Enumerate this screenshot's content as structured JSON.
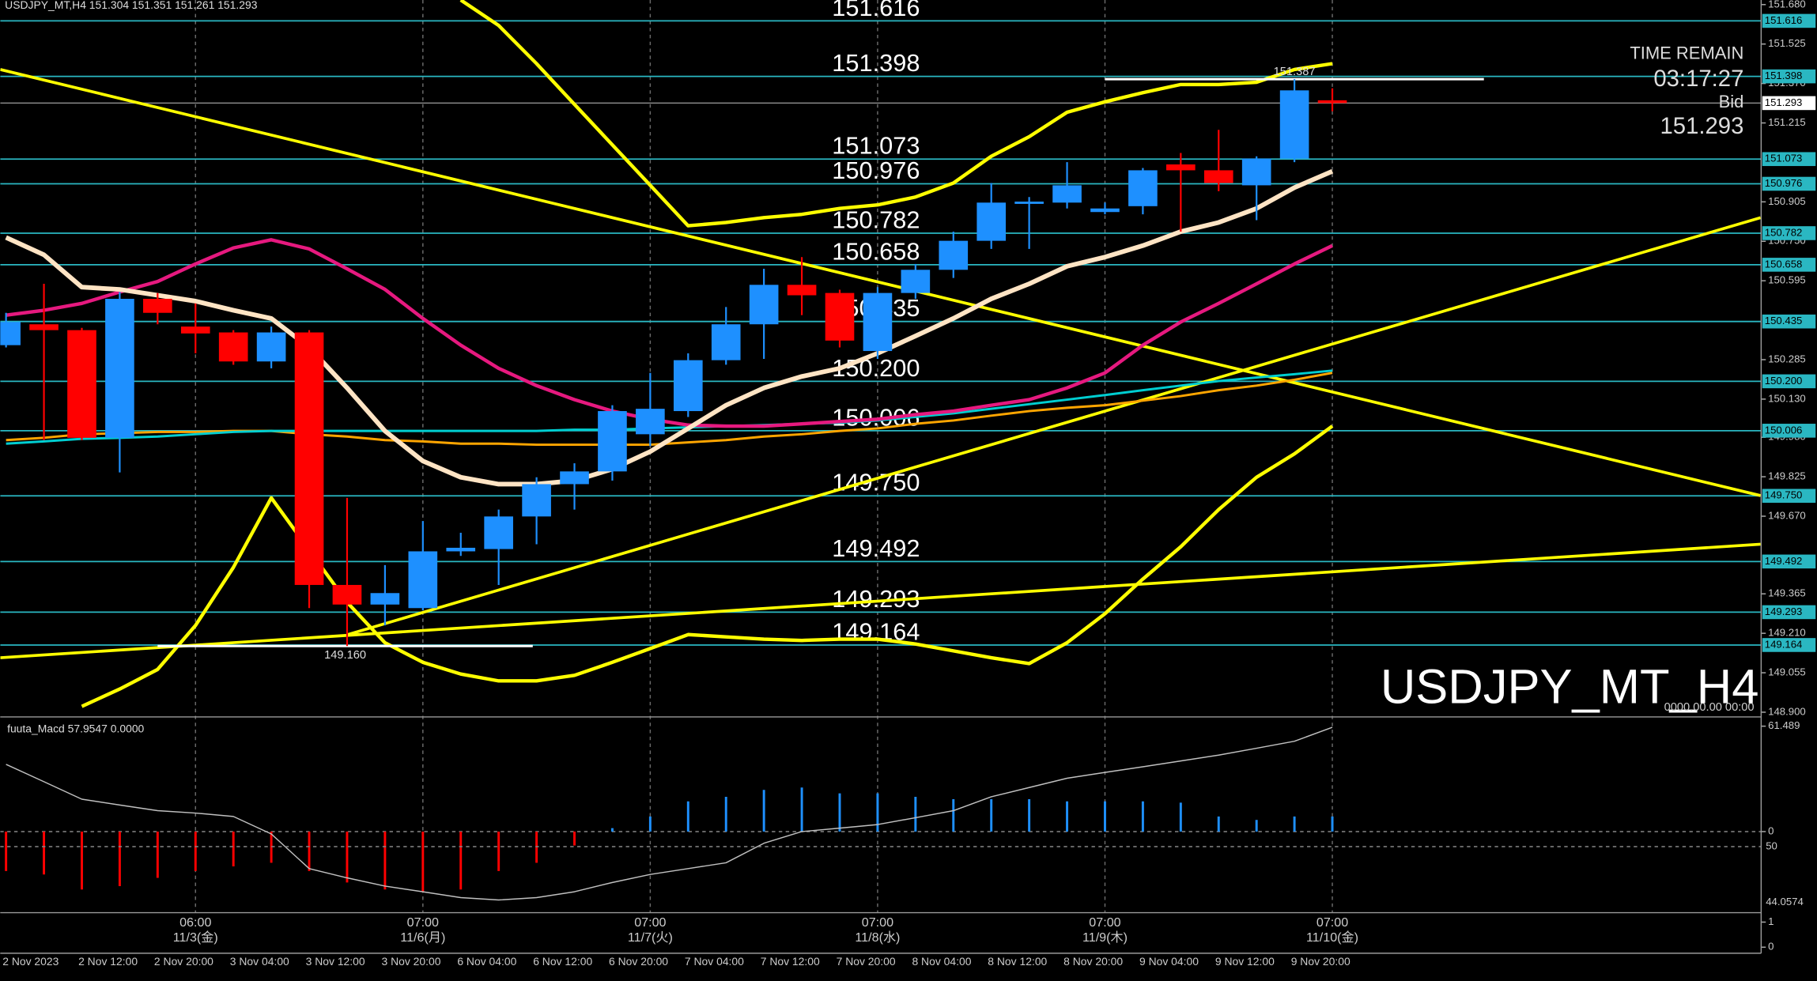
{
  "chart_data": [
    {
      "type": "candlestick",
      "title": "USDJPY_MT,H4  151.304 151.351 151.261 151.293",
      "categories": [
        "2 Nov 2023",
        null,
        "2 Nov 12:00",
        null,
        "2 Nov 20:00",
        null,
        "3 Nov 04:00",
        null,
        "3 Nov 12:00",
        null,
        "3 Nov 20:00",
        null,
        "6 Nov 04:00",
        null,
        "6 Nov 12:00",
        null,
        "6 Nov 20:00",
        null,
        "7 Nov 04:00",
        null,
        "7 Nov 12:00",
        null,
        "7 Nov 20:00",
        null,
        "8 Nov 04:00",
        null,
        "8 Nov 12:00",
        null,
        "8 Nov 20:00",
        null,
        "9 Nov 04:00",
        null,
        "9 Nov 12:00",
        null,
        "9 Nov 20:00",
        null
      ],
      "jst_times": [
        null,
        null,
        null,
        null,
        null,
        "06:00",
        null,
        null,
        null,
        null,
        null,
        "07:00",
        null,
        null,
        null,
        null,
        null,
        "07:00",
        null,
        null,
        null,
        null,
        null,
        "07:00",
        null,
        null,
        null,
        null,
        null,
        "07:00",
        null,
        null,
        null,
        null,
        null,
        "07:00"
      ],
      "jst_dates": [
        null,
        null,
        null,
        null,
        null,
        "11/3(金)",
        null,
        null,
        null,
        null,
        null,
        "11/6(月)",
        null,
        null,
        null,
        null,
        null,
        "11/7(火)",
        null,
        null,
        null,
        null,
        null,
        "11/8(水)",
        null,
        null,
        null,
        null,
        null,
        "11/9(木)",
        null,
        null,
        null,
        null,
        null,
        "11/10(金)"
      ],
      "open": [
        150.342,
        150.424,
        150.401,
        149.978,
        150.524,
        150.415,
        150.392,
        150.278,
        150.392,
        149.4,
        149.323,
        149.309,
        149.532,
        149.541,
        149.669,
        149.796,
        149.846,
        149.992,
        150.083,
        150.283,
        150.424,
        150.579,
        150.547,
        150.319,
        150.547,
        150.638,
        150.752,
        150.897,
        150.902,
        150.865,
        150.888,
        151.052,
        151.029,
        150.97,
        151.075,
        151.304
      ],
      "high": [
        150.469,
        150.583,
        150.41,
        150.551,
        150.547,
        150.506,
        150.401,
        150.415,
        150.401,
        149.742,
        149.478,
        149.651,
        149.605,
        149.696,
        149.823,
        149.878,
        150.106,
        150.233,
        150.31,
        150.492,
        150.642,
        150.688,
        150.56,
        150.57,
        150.661,
        150.788,
        150.979,
        150.924,
        151.061,
        150.902,
        151.038,
        151.097,
        151.188,
        151.084,
        151.387,
        151.351
      ],
      "low": [
        150.333,
        149.969,
        149.969,
        149.842,
        150.424,
        150.31,
        150.265,
        150.251,
        149.309,
        149.16,
        149.241,
        149.3,
        149.514,
        149.4,
        149.56,
        149.696,
        149.81,
        149.946,
        150.06,
        150.265,
        150.288,
        150.46,
        150.333,
        150.288,
        150.524,
        150.606,
        150.72,
        150.72,
        150.879,
        150.856,
        150.856,
        150.788,
        150.947,
        150.833,
        151.061,
        151.261
      ],
      "close": [
        150.433,
        150.401,
        149.978,
        150.524,
        150.469,
        150.388,
        150.278,
        150.392,
        149.4,
        149.323,
        149.368,
        149.532,
        149.546,
        149.669,
        149.796,
        149.846,
        150.083,
        150.092,
        150.283,
        150.424,
        150.579,
        150.538,
        150.36,
        150.547,
        150.638,
        150.752,
        150.902,
        150.906,
        150.97,
        150.879,
        151.029,
        151.029,
        150.979,
        151.075,
        151.343,
        151.293
      ],
      "up_color": "#1e90ff",
      "down_color": "#ff0000",
      "ylim": [
        148.886,
        151.698
      ],
      "yticks": [
        {
          "value": 151.68,
          "label": "151.680"
        },
        151.525,
        {
          "value": 151.37,
          "label": "151.370"
        },
        151.215,
        150.905,
        {
          "value": 150.75,
          "label": "150.750"
        },
        150.595,
        150.285,
        {
          "value": 150.13,
          "label": "150.130"
        },
        {
          "value": 149.98,
          "label": "149.980"
        },
        149.825,
        {
          "value": 149.67,
          "label": "149.670"
        },
        149.365,
        {
          "value": 149.21,
          "label": "149.210"
        },
        149.055,
        {
          "value": 148.9,
          "label": "148.900"
        }
      ],
      "lines": [
        {
          "color": "#ffff00",
          "width": 3,
          "values": [
            null,
            null,
            null,
            null,
            null,
            null,
            null,
            null,
            null,
            null,
            null,
            null,
            151.698,
            151.598,
            151.448,
            151.288,
            151.129,
            150.97,
            150.811,
            150.824,
            150.843,
            150.856,
            150.879,
            150.893,
            150.924,
            150.979,
            151.084,
            151.161,
            151.257,
            151.298,
            151.334,
            151.366,
            151.366,
            151.375,
            151.425,
            151.448
          ]
        },
        {
          "color": "#ffff00",
          "width": 3,
          "values": [
            null,
            null,
            148.923,
            148.991,
            149.068,
            149.241,
            149.469,
            149.742,
            149.537,
            149.332,
            149.173,
            149.096,
            149.05,
            149.023,
            149.023,
            149.045,
            149.096,
            149.15,
            149.205,
            149.196,
            149.187,
            149.182,
            149.187,
            149.187,
            149.168,
            149.141,
            149.114,
            149.091,
            149.173,
            149.287,
            149.423,
            149.55,
            149.696,
            149.823,
            149.915,
            150.024
          ]
        },
        {
          "color": "#ffa500",
          "width": 2,
          "values": [
            149.969,
            149.978,
            149.992,
            149.996,
            150.001,
            150.001,
            150.005,
            150.005,
            149.992,
            149.983,
            149.969,
            149.964,
            149.955,
            149.955,
            149.951,
            149.951,
            149.951,
            149.951,
            149.96,
            149.969,
            149.983,
            149.992,
            150.005,
            150.015,
            150.033,
            150.046,
            150.065,
            150.083,
            150.096,
            150.106,
            150.124,
            150.142,
            150.165,
            150.183,
            150.206,
            150.233
          ]
        },
        {
          "color": "#00ced1",
          "width": 2,
          "values": [
            149.955,
            149.964,
            149.974,
            149.978,
            149.983,
            149.992,
            150.001,
            150.005,
            150.005,
            150.005,
            150.005,
            150.005,
            150.005,
            150.005,
            150.005,
            150.01,
            150.01,
            150.015,
            150.019,
            150.024,
            150.028,
            150.033,
            150.037,
            150.046,
            150.06,
            150.074,
            150.092,
            150.11,
            150.128,
            150.146,
            150.165,
            150.183,
            150.201,
            150.215,
            150.228,
            150.242
          ]
        },
        {
          "color": "#e6197f",
          "width": 3,
          "values": [
            150.46,
            150.479,
            150.506,
            150.551,
            150.592,
            150.661,
            150.724,
            150.756,
            150.72,
            150.642,
            150.561,
            150.447,
            150.342,
            150.251,
            150.183,
            150.128,
            150.083,
            150.051,
            150.028,
            150.024,
            150.024,
            150.033,
            150.042,
            150.051,
            150.069,
            150.083,
            150.106,
            150.128,
            150.174,
            150.233,
            150.342,
            150.433,
            150.506,
            150.583,
            150.661,
            150.733
          ]
        },
        {
          "color": "#ffe4c4",
          "width": 4,
          "values": [
            150.765,
            150.697,
            150.57,
            150.561,
            150.538,
            150.515,
            150.479,
            150.447,
            150.333,
            150.174,
            150.005,
            149.887,
            149.823,
            149.796,
            149.796,
            149.81,
            149.855,
            149.924,
            150.015,
            150.106,
            150.174,
            150.219,
            150.251,
            150.31,
            150.378,
            150.447,
            150.524,
            150.583,
            150.652,
            150.688,
            150.733,
            150.788,
            150.824,
            150.879,
            150.961,
            151.025
          ]
        }
      ],
      "trendlines": [
        {
          "color": "#ffff00",
          "x": [
            -0.15,
            46.3
          ],
          "values": [
            151.425,
            149.751
          ]
        },
        {
          "color": "#ffff00",
          "x": [
            -0.15,
            46.3
          ],
          "values": [
            149.114,
            149.56
          ]
        },
        {
          "color": "#ffff00",
          "x": [
            9.02,
            46.3
          ],
          "values": [
            149.205,
            150.843
          ]
        }
      ],
      "hlines": [
        {
          "value": 151.387,
          "label": "151.387",
          "x": [
            29,
            39
          ]
        },
        {
          "value": 149.16,
          "label": "149.160",
          "x": [
            4,
            13.9
          ]
        }
      ],
      "levels": [
        {
          "value": 151.616,
          "label": "151.616"
        },
        {
          "value": 151.398,
          "label": "151.398"
        },
        {
          "value": 151.073,
          "label": "151.073"
        },
        {
          "value": 150.976,
          "label": "150.976"
        },
        {
          "value": 150.782,
          "label": "150.782"
        },
        {
          "value": 150.658,
          "label": "150.658"
        },
        {
          "value": 150.435,
          "label": "150.435"
        },
        {
          "value": 150.2,
          "label": "150.200"
        },
        {
          "value": 150.006,
          "label": "150.006"
        },
        {
          "value": 149.75,
          "label": "149.750"
        },
        {
          "value": 149.492,
          "label": "149.492"
        },
        {
          "value": 149.293,
          "label": "149.293"
        },
        {
          "value": 149.164,
          "label": "149.164"
        }
      ],
      "level_color": "#2ab7c2",
      "time_remain_label": "TIME REMAIN",
      "time_remain": "03:17:27",
      "bid_label": "Bid",
      "bid": 151.293,
      "watermark": "USDJPY_MT_H4",
      "watermark_date": "0000.00.00 00:00"
    },
    {
      "type": "bar",
      "title": "fuuta_Macd 57.9547 0.0000",
      "values": [
        -23,
        -25,
        -33.8,
        -31.8,
        -27,
        -23,
        -20.3,
        -18.2,
        -23,
        -29.7,
        -33.8,
        -35.1,
        -33.8,
        -23,
        -18.2,
        -8.1,
        2,
        8.8,
        17.6,
        20.3,
        24.3,
        25.7,
        22.3,
        22.3,
        20.3,
        18.9,
        18.9,
        18.9,
        17.6,
        17.6,
        17.6,
        16.9,
        8.8,
        6.8,
        8.8,
        8.8
      ],
      "positive_color": "#1e90ff",
      "negative_color": "#ff0000",
      "line": [
        39.2,
        29.1,
        18.9,
        15.5,
        12.2,
        10.8,
        8.8,
        -1.4,
        -21.6,
        -27,
        -31.8,
        -35.1,
        -38.5,
        -39.9,
        -38.5,
        -35.1,
        -29.7,
        -25,
        -21.6,
        -18.2,
        -6.8,
        0,
        2,
        4.1,
        8.1,
        12.2,
        20.3,
        25.7,
        31.1,
        34.5,
        37.8,
        41.2,
        44.6,
        48.6,
        52.7,
        60.8
      ],
      "line_color": "#c0c0c0",
      "ylim": [
        -47.3,
        66.2
      ],
      "yticks": [
        61.489,
        0
      ],
      "axis_notes": [
        "50",
        "44.0574"
      ]
    },
    {
      "type": "line",
      "ylim": [
        -0.24,
        1.33
      ],
      "yticks": [
        1,
        0
      ]
    }
  ]
}
